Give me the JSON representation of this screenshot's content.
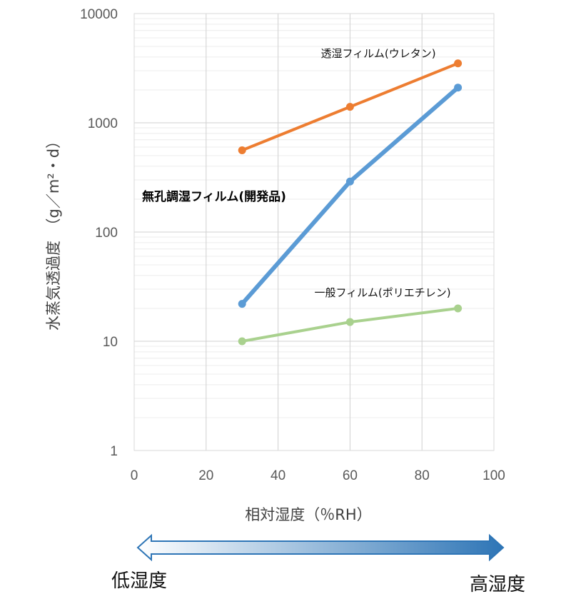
{
  "chart_data": {
    "type": "line",
    "xlabel": "相対湿度（％RH）",
    "ylabel": "水蒸気透過度　（g／m²・d）",
    "xlim": [
      0,
      100
    ],
    "x_ticks": [
      0,
      20,
      40,
      60,
      80,
      100
    ],
    "x_tick_labels": [
      "0",
      "20",
      "40",
      "60",
      "80",
      "100"
    ],
    "ylim": [
      1,
      10000
    ],
    "y_scale": "log",
    "y_ticks": [
      1,
      10,
      100,
      1000,
      10000
    ],
    "y_tick_labels": [
      "1",
      "10",
      "100",
      "1000",
      "10000"
    ],
    "grid": true,
    "legend": "none",
    "x": [
      30,
      60,
      90
    ],
    "series": [
      {
        "name": "透湿フィルム(ウレタン)",
        "color": "#ED7D31",
        "values": [
          560,
          1400,
          3500
        ]
      },
      {
        "name": "無孔調湿フィルム(開発品)",
        "color": "#5B9BD5",
        "values": [
          22,
          290,
          2100
        ]
      },
      {
        "name": "一般フィルム(ポリエチレン)",
        "color": "#A9D18E",
        "values": [
          10,
          15,
          20
        ]
      }
    ]
  },
  "humidity_arrow": {
    "low_label": "低湿度",
    "high_label": "高湿度",
    "gradient_start": "#FFFFFF",
    "gradient_end": "#2E75B6",
    "outline": "#2E75B6"
  }
}
